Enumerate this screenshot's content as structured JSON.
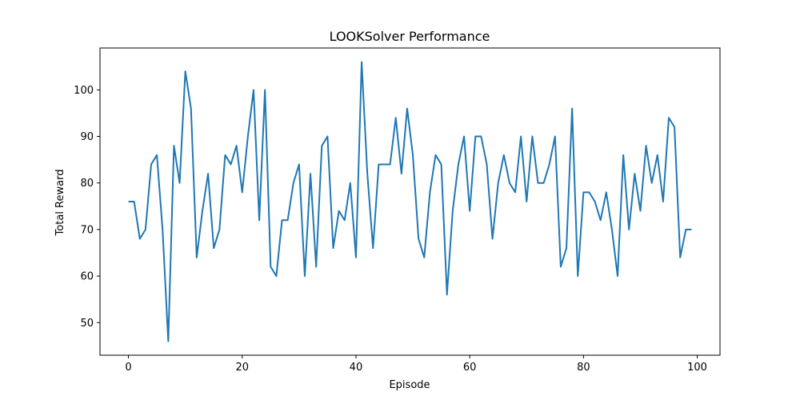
{
  "chart_data": {
    "type": "line",
    "title": "LOOKSolver Performance",
    "xlabel": "Episode",
    "ylabel": "Total Reward",
    "xlim": [
      -5,
      104
    ],
    "ylim": [
      43,
      109
    ],
    "xticks": [
      0,
      20,
      40,
      60,
      80,
      100
    ],
    "yticks": [
      50,
      60,
      70,
      80,
      90,
      100
    ],
    "grid": false,
    "series": [
      {
        "color": "#1f77b4",
        "x": [
          0,
          1,
          2,
          3,
          4,
          5,
          6,
          7,
          8,
          9,
          10,
          11,
          12,
          13,
          14,
          15,
          16,
          17,
          18,
          19,
          20,
          21,
          22,
          23,
          24,
          25,
          26,
          27,
          28,
          29,
          30,
          31,
          32,
          33,
          34,
          35,
          36,
          37,
          38,
          39,
          40,
          41,
          42,
          43,
          44,
          45,
          46,
          47,
          48,
          49,
          50,
          51,
          52,
          53,
          54,
          55,
          56,
          57,
          58,
          59,
          60,
          61,
          62,
          63,
          64,
          65,
          66,
          67,
          68,
          69,
          70,
          71,
          72,
          73,
          74,
          75,
          76,
          77,
          78,
          79,
          80,
          81,
          82,
          83,
          84,
          85,
          86,
          87,
          88,
          89,
          90,
          91,
          92,
          93,
          94,
          95,
          96,
          97,
          98,
          99
        ],
        "values": [
          76,
          76,
          68,
          70,
          84,
          86,
          70,
          46,
          88,
          80,
          104,
          96,
          64,
          74,
          82,
          66,
          70,
          86,
          84,
          88,
          78,
          90,
          100,
          72,
          100,
          62,
          60,
          72,
          72,
          80,
          84,
          60,
          82,
          62,
          88,
          90,
          66,
          74,
          72,
          80,
          64,
          106,
          82,
          66,
          84,
          84,
          84,
          94,
          82,
          96,
          86,
          68,
          64,
          78,
          86,
          84,
          56,
          74,
          84,
          90,
          74,
          90,
          90,
          84,
          68,
          80,
          86,
          80,
          78,
          90,
          76,
          90,
          80,
          80,
          84,
          90,
          62,
          66,
          96,
          60,
          78,
          78,
          76,
          72,
          78,
          70,
          60,
          86,
          70,
          82,
          74,
          88,
          80,
          86,
          76,
          94,
          92,
          64,
          70,
          70
        ]
      }
    ]
  }
}
